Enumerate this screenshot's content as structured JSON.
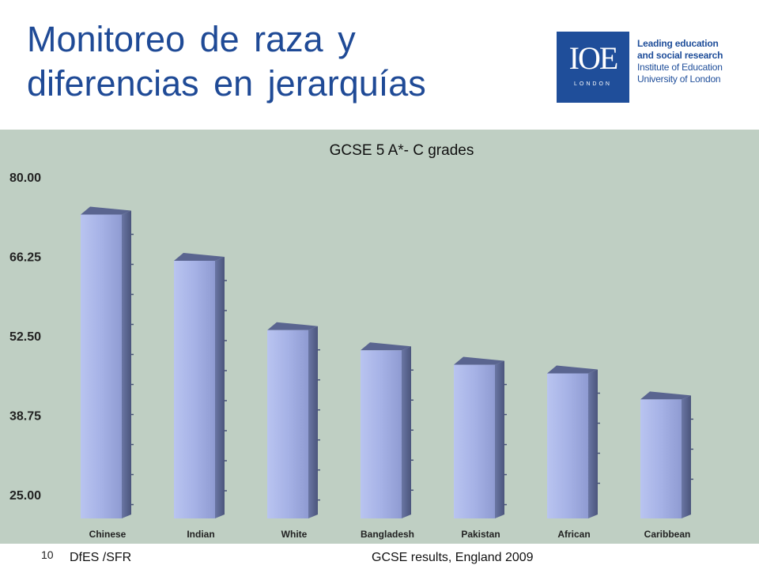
{
  "slide": {
    "title_line1": "Monitoreo de raza y",
    "title_line2": "diferencias en jerarquías",
    "page_number": "10",
    "source_left": "DfES /SFR",
    "source_right": "GCSE results, England 2009"
  },
  "logo": {
    "mark": "IOE",
    "city": "LONDON",
    "line1": "Leading education",
    "line2": "and social research",
    "line3": "Institute of Education",
    "line4": "University of London"
  },
  "colors": {
    "title": "#1f4a96",
    "chart_background": "#bfcfc3",
    "bar_front": "#a7b4e8",
    "bar_side": "#5a6590",
    "bar_top": "#c4ccef"
  },
  "chart_data": {
    "type": "bar",
    "title": "GCSE 5 A*- C grades",
    "categories": [
      "Chinese",
      "Indian",
      "White",
      "Bangladesh",
      "Pakistan",
      "African",
      "Caribbean"
    ],
    "values": [
      73.5,
      65.5,
      53.5,
      50.0,
      47.5,
      46.0,
      41.5
    ],
    "y_ticks": [
      "80.00",
      "66.25",
      "52.50",
      "38.75",
      "25.00"
    ],
    "ylim": [
      25,
      80
    ],
    "grid": false,
    "legend": "none"
  }
}
